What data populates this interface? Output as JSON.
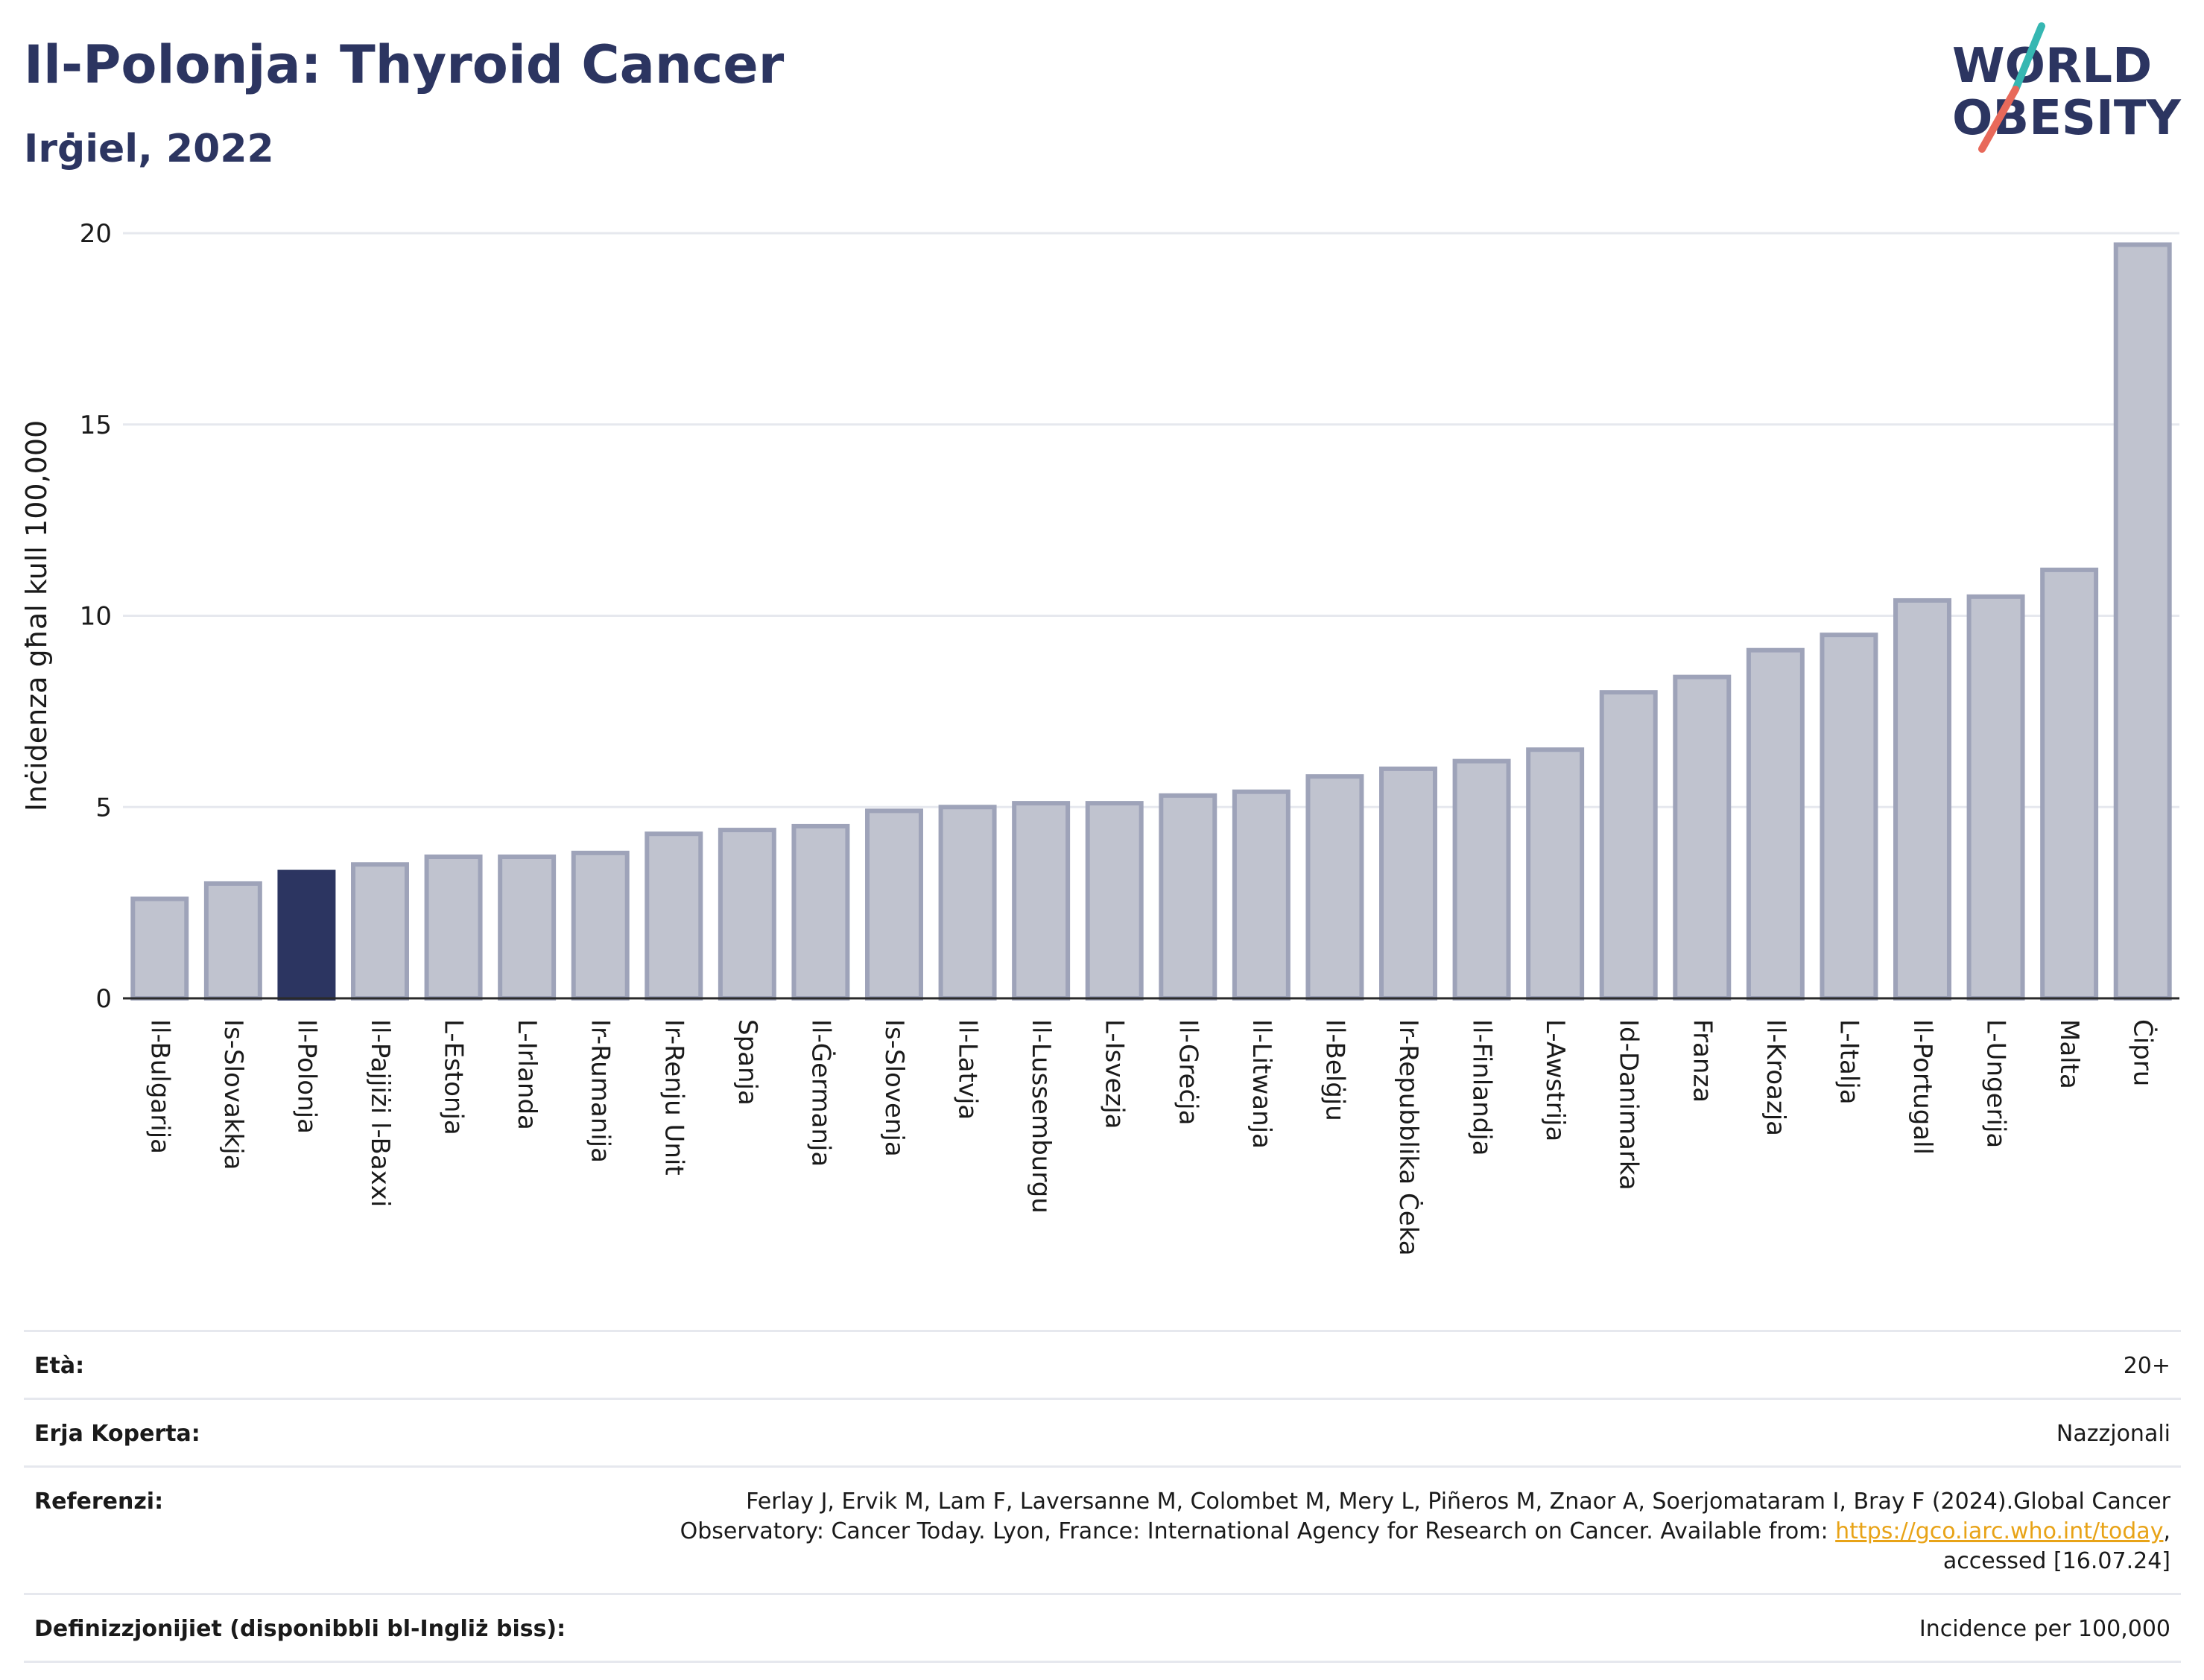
{
  "title": "Il-Polonja: Thyroid Cancer",
  "subtitle": "Irġiel, 2022",
  "logo": {
    "line1": "WORLD",
    "line2": "OBESITY"
  },
  "colors": {
    "highlight": "#2c3561",
    "bar_fill": "#c0c3cf",
    "bar_stroke": "#9ea3b9",
    "title": "#2c3561",
    "grid": "#e6e8ee",
    "link": "#e8a317"
  },
  "chart_data": {
    "type": "bar",
    "title": "",
    "xlabel": "",
    "ylabel": "Inċidenza għal kull 100,000",
    "ylim": [
      0,
      20
    ],
    "yticks": [
      0,
      5,
      10,
      15,
      20
    ],
    "grid": true,
    "highlight_category": "Il-Polonja",
    "categories": [
      "Il-Bulgarija",
      "Is-Slovakkja",
      "Il-Polonja",
      "Il-Pajjiżi l-Baxxi",
      "L-Estonja",
      "L-Irlanda",
      "Ir-Rumanija",
      "Ir-Renju Unit",
      "Spanja",
      "Il-Ġermanja",
      "Is-Slovenja",
      "Il-Latvja",
      "Il-Lussemburgu",
      "L-Isvezja",
      "Il-Greċja",
      "Il-Litwanja",
      "Il-Belġju",
      "Ir-Repubblika Ċeka",
      "Il-Finlandja",
      "L-Awstrija",
      "Id-Danimarka",
      "Franza",
      "Il-Kroazja",
      "L-Italja",
      "Il-Portugall",
      "L-Ungerija",
      "Malta",
      "Ċipru"
    ],
    "values": [
      2.6,
      3.0,
      3.3,
      3.5,
      3.7,
      3.7,
      3.8,
      4.3,
      4.4,
      4.5,
      4.9,
      5.0,
      5.1,
      5.1,
      5.3,
      5.4,
      5.8,
      6.0,
      6.2,
      6.5,
      8.0,
      8.4,
      9.1,
      9.5,
      10.4,
      10.5,
      11.2,
      19.7
    ]
  },
  "meta": {
    "age": {
      "label": "Età:",
      "value": "20+"
    },
    "area": {
      "label": "Erja Koperta:",
      "value": "Nazzjonali"
    },
    "references": {
      "label": "Referenzi:",
      "text_line1": "Ferlay J, Ervik M, Lam F, Laversanne M, Colombet M, Mery L, Piñeros M, Znaor A, Soerjomataram I, Bray F (2024).Global Cancer",
      "text_line2_pre": "Observatory: Cancer Today. Lyon, France: International Agency for Research on Cancer. Available from: ",
      "link": "https://gco.iarc.who.int/today",
      "text_line2_post": ",",
      "text_line3": "accessed [16.07.24]"
    },
    "definitions": {
      "label": "Definizzjonijiet (disponibbli bl-Ingliż biss):",
      "value": "Incidence per 100,000"
    }
  }
}
